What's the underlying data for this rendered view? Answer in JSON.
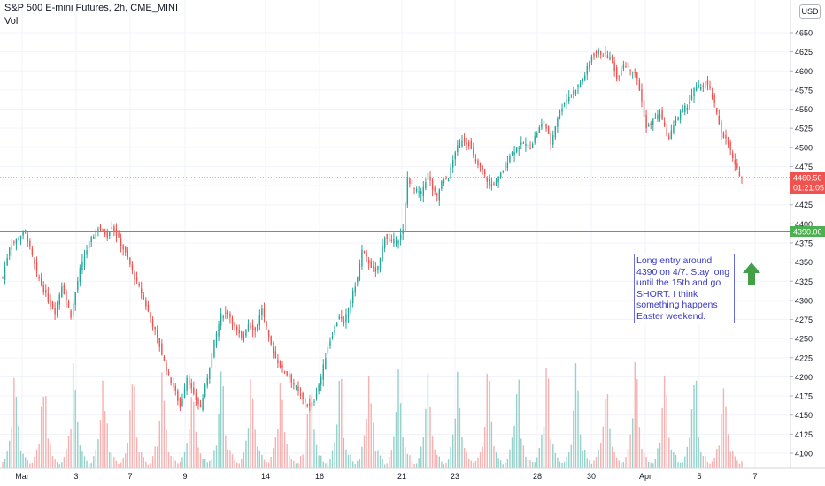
{
  "header": {
    "title": "S&P 500 E-mini Futures, 2h, CME_MINI",
    "indicator": "Vol"
  },
  "currency_badge": "USD",
  "note": "Long entry around 4390 on 4/7. Stay long until the 15th and go SHORT. I think something happens Easter weekend.",
  "colors": {
    "up": "#26a69a",
    "down": "#ef5350",
    "level_line": "#4caf50",
    "note_text": "#3a3ac9",
    "arrow": "#43a047"
  },
  "icons": {
    "note_arrow": "up-arrow-icon"
  },
  "chart_data": {
    "type": "candlestick",
    "title": "S&P 500 E-mini Futures, 2h, CME_MINI",
    "ylim": [
      4090,
      4675
    ],
    "y_ticks": [
      4100,
      4125,
      4150,
      4175,
      4200,
      4225,
      4250,
      4275,
      4300,
      4325,
      4350,
      4375,
      4400,
      4425,
      4450,
      4475,
      4500,
      4525,
      4550,
      4575,
      4600,
      4625,
      4650
    ],
    "x_ticks": [
      "Mar",
      "3",
      "7",
      "9",
      "14",
      "16",
      "21",
      "23",
      "28",
      "30",
      "Apr",
      "5",
      "7"
    ],
    "last_price": {
      "value": 4460.5,
      "label": "4460.50",
      "countdown": "01:21:05"
    },
    "horizontal_line": {
      "value": 4390,
      "label": "4390.00"
    },
    "grid": true,
    "price_axis": "right",
    "volume_overlay": true,
    "anchors": [
      [
        0,
        4330
      ],
      [
        3,
        4370
      ],
      [
        8,
        4385
      ],
      [
        10,
        4390
      ],
      [
        15,
        4335
      ],
      [
        20,
        4300
      ],
      [
        23,
        4285
      ],
      [
        26,
        4320
      ],
      [
        30,
        4280
      ],
      [
        34,
        4340
      ],
      [
        38,
        4375
      ],
      [
        42,
        4395
      ],
      [
        46,
        4385
      ],
      [
        48,
        4398
      ],
      [
        51,
        4380
      ],
      [
        55,
        4355
      ],
      [
        58,
        4330
      ],
      [
        61,
        4310
      ],
      [
        64,
        4285
      ],
      [
        67,
        4260
      ],
      [
        70,
        4230
      ],
      [
        73,
        4200
      ],
      [
        76,
        4180
      ],
      [
        78,
        4160
      ],
      [
        81,
        4200
      ],
      [
        84,
        4175
      ],
      [
        87,
        4160
      ],
      [
        90,
        4200
      ],
      [
        93,
        4245
      ],
      [
        96,
        4280
      ],
      [
        99,
        4285
      ],
      [
        102,
        4265
      ],
      [
        105,
        4250
      ],
      [
        108,
        4270
      ],
      [
        111,
        4260
      ],
      [
        114,
        4290
      ],
      [
        117,
        4250
      ],
      [
        120,
        4225
      ],
      [
        123,
        4210
      ],
      [
        126,
        4200
      ],
      [
        129,
        4185
      ],
      [
        132,
        4170
      ],
      [
        135,
        4160
      ],
      [
        137,
        4170
      ],
      [
        140,
        4200
      ],
      [
        143,
        4240
      ],
      [
        146,
        4265
      ],
      [
        148,
        4280
      ],
      [
        150,
        4270
      ],
      [
        153,
        4300
      ],
      [
        156,
        4330
      ],
      [
        158,
        4365
      ],
      [
        161,
        4350
      ],
      [
        164,
        4335
      ],
      [
        166,
        4355
      ],
      [
        168,
        4385
      ],
      [
        171,
        4375
      ],
      [
        174,
        4380
      ],
      [
        176,
        4390
      ],
      [
        178,
        4460
      ],
      [
        181,
        4445
      ],
      [
        184,
        4440
      ],
      [
        187,
        4465
      ],
      [
        189,
        4445
      ],
      [
        191,
        4435
      ],
      [
        193,
        4455
      ],
      [
        196,
        4460
      ],
      [
        199,
        4495
      ],
      [
        202,
        4510
      ],
      [
        205,
        4505
      ],
      [
        208,
        4480
      ],
      [
        211,
        4470
      ],
      [
        214,
        4450
      ],
      [
        217,
        4455
      ],
      [
        220,
        4470
      ],
      [
        223,
        4490
      ],
      [
        226,
        4500
      ],
      [
        229,
        4505
      ],
      [
        232,
        4500
      ],
      [
        235,
        4520
      ],
      [
        238,
        4535
      ],
      [
        241,
        4505
      ],
      [
        244,
        4540
      ],
      [
        247,
        4560
      ],
      [
        250,
        4570
      ],
      [
        253,
        4580
      ],
      [
        256,
        4595
      ],
      [
        259,
        4620
      ],
      [
        262,
        4625
      ],
      [
        265,
        4620
      ],
      [
        268,
        4615
      ],
      [
        270,
        4590
      ],
      [
        273,
        4610
      ],
      [
        275,
        4605
      ],
      [
        277,
        4600
      ],
      [
        279,
        4590
      ],
      [
        281,
        4560
      ],
      [
        283,
        4525
      ],
      [
        286,
        4535
      ],
      [
        289,
        4545
      ],
      [
        291,
        4525
      ],
      [
        293,
        4510
      ],
      [
        295,
        4530
      ],
      [
        298,
        4545
      ],
      [
        301,
        4555
      ],
      [
        304,
        4575
      ],
      [
        307,
        4580
      ],
      [
        309,
        4585
      ],
      [
        311,
        4575
      ],
      [
        313,
        4555
      ],
      [
        316,
        4520
      ],
      [
        319,
        4505
      ],
      [
        322,
        4475
      ],
      [
        325,
        4460
      ]
    ],
    "volume_pattern": [
      5,
      8,
      14,
      22,
      40,
      70,
      58,
      30,
      16,
      12,
      9,
      6,
      4
    ]
  }
}
